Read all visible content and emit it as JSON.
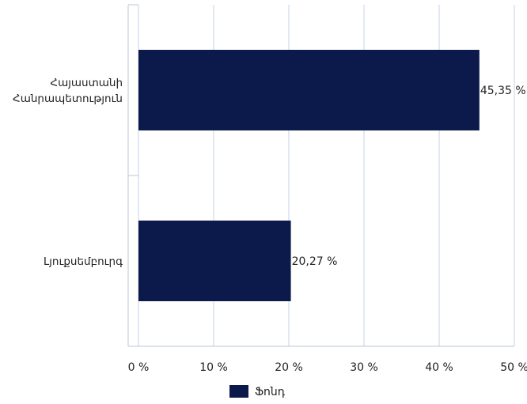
{
  "chart_data": {
    "type": "bar",
    "orientation": "horizontal",
    "categories": [
      [
        "Հայաստանի",
        "Հանրապետություն"
      ],
      [
        "Լյուքսեմբուրգ"
      ]
    ],
    "series": [
      {
        "name": "Ֆոնդ",
        "values": [
          45.35,
          20.27
        ],
        "labels": [
          "45,35 %",
          "20,27 %"
        ]
      }
    ],
    "xticks": [
      "0 %",
      "10 %",
      "20 %",
      "30 %",
      "40 %",
      "50 %"
    ],
    "xlim": [
      0,
      50
    ],
    "grid": true,
    "legend": "bottom-center",
    "colors": {
      "bar": "#0b1a4a",
      "grid": "#c7d3e4",
      "axis": "#b9c7da"
    }
  }
}
